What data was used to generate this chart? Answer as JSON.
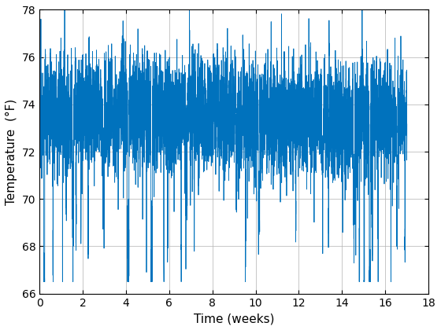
{
  "title": "",
  "xlabel": "Time (weeks)",
  "ylabel": "Temperature  (°F)",
  "xlim": [
    0,
    18
  ],
  "ylim": [
    66,
    78
  ],
  "xticks": [
    0,
    2,
    4,
    6,
    8,
    10,
    12,
    14,
    16,
    18
  ],
  "yticks": [
    66,
    68,
    70,
    72,
    74,
    76,
    78
  ],
  "line_color": "#0072BD",
  "line_width": 0.6,
  "grid": true,
  "n_weeks": 17,
  "samples_per_week": 336,
  "seed": 12345,
  "base_temp": 73.5,
  "background_color": "#ffffff",
  "figsize": [
    5.6,
    4.2
  ],
  "dpi": 100
}
